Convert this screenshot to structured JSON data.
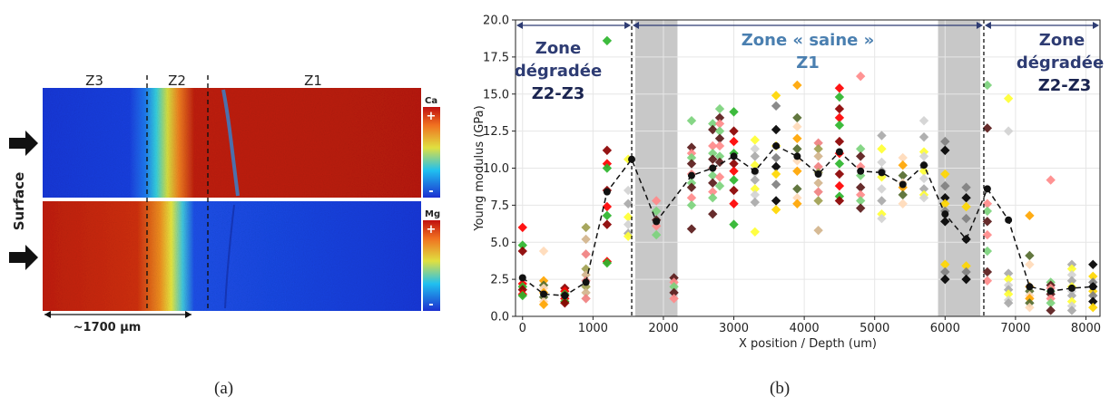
{
  "panel_a": {
    "zone_labels": [
      "Z3",
      "Z2",
      "Z1"
    ],
    "side_label": "Surface",
    "scale_label": "~1700 µm",
    "maps": [
      {
        "element": "Ca",
        "plus": "+",
        "minus": "-"
      },
      {
        "element": "Mg",
        "plus": "+",
        "minus": "-"
      }
    ],
    "caption": "(a)"
  },
  "panel_b": {
    "caption": "(b)",
    "zone_left": {
      "line1": "Zone",
      "line2": "dégradée",
      "line3": "Z2-Z3"
    },
    "zone_mid": {
      "line1": "Zone « saine »",
      "line2": "Z1"
    },
    "zone_right": {
      "line1": "Zone",
      "line2": "dégradée",
      "line3": "Z2-Z3"
    },
    "colors": {
      "zone_text": "#2e3c73",
      "zone_mid_text": "#4a7fb0",
      "arrow": "#2e3c73",
      "shade": "#c8c8c8",
      "mean": "#111111",
      "point_palette": [
        "#ff0000",
        "#ff8a8a",
        "#f08080",
        "#ffa500",
        "#ffd700",
        "#ffff33",
        "#2db52d",
        "#7cd37c",
        "#a0a050",
        "#556b2f",
        "#808080",
        "#d3d3d3",
        "#8b0000",
        "#5a1a1a",
        "#d2b48c",
        "#ffdab9",
        "#000000",
        "#a9a9a9"
      ]
    }
  },
  "chart_data": {
    "type": "scatter",
    "xlabel": "X position / Depth (um)",
    "ylabel": "Young modulus (GPa)",
    "xlim": [
      -100,
      8200
    ],
    "ylim": [
      0,
      20
    ],
    "xticks": [
      0,
      1000,
      2000,
      3000,
      4000,
      5000,
      6000,
      7000,
      8000
    ],
    "yticks": [
      0.0,
      2.5,
      5.0,
      7.5,
      10.0,
      12.5,
      15.0,
      17.5,
      20.0
    ],
    "shaded_bands": [
      [
        1600,
        2200
      ],
      [
        5900,
        6500
      ]
    ],
    "boundaries": [
      1550,
      6550
    ],
    "grid": true,
    "legend": "none",
    "mean": {
      "x": [
        0,
        300,
        600,
        900,
        1200,
        1550,
        1900,
        2400,
        2700,
        3000,
        3300,
        3600,
        3900,
        4200,
        4500,
        4800,
        5100,
        5400,
        5700,
        6000,
        6300,
        6600,
        6900,
        7200,
        7500,
        7800,
        8100
      ],
      "y": [
        2.6,
        1.5,
        1.4,
        2.3,
        8.4,
        10.6,
        6.4,
        9.5,
        10.0,
        10.8,
        9.8,
        11.5,
        10.8,
        9.6,
        11.1,
        9.8,
        9.7,
        8.9,
        10.2,
        6.9,
        5.2,
        8.6,
        6.5,
        2.0,
        1.7,
        1.9,
        2.0
      ]
    },
    "points": [
      {
        "x": 0,
        "ys": [
          6.0,
          4.8,
          4.4,
          2.2,
          2.0,
          1.8,
          1.5,
          1.4
        ]
      },
      {
        "x": 300,
        "ys": [
          4.4,
          2.4,
          2.1,
          1.9,
          1.6,
          1.3,
          1.0,
          0.8
        ]
      },
      {
        "x": 600,
        "ys": [
          1.9,
          1.7,
          1.5,
          1.4,
          1.2,
          1.0,
          0.9
        ]
      },
      {
        "x": 900,
        "ys": [
          6.0,
          5.2,
          4.2,
          3.2,
          2.8,
          2.4,
          2.0,
          1.6,
          1.2
        ]
      },
      {
        "x": 1200,
        "ys": [
          18.6,
          11.2,
          10.3,
          10.0,
          8.5,
          7.4,
          6.8,
          6.2,
          3.7,
          3.6
        ]
      },
      {
        "x": 1500,
        "ys": [
          10.6,
          8.5,
          7.6,
          6.7,
          6.2,
          5.6,
          5.4
        ]
      },
      {
        "x": 1900,
        "ys": [
          7.8,
          7.1,
          6.5,
          6.1,
          5.5
        ]
      },
      {
        "x": 2150,
        "ys": [
          2.6,
          2.3,
          2.0,
          1.6,
          1.2
        ]
      },
      {
        "x": 2400,
        "ys": [
          13.2,
          11.4,
          11.0,
          10.7,
          10.3,
          9.6,
          9.0,
          8.7,
          8.0,
          7.5,
          5.9
        ]
      },
      {
        "x": 2700,
        "ys": [
          13.0,
          12.6,
          11.5,
          11.0,
          10.6,
          10.0,
          9.5,
          9.0,
          8.4,
          8.0,
          6.9
        ]
      },
      {
        "x": 2800,
        "ys": [
          14.0,
          13.4,
          13.0,
          12.5,
          12.0,
          11.5,
          10.8,
          10.4,
          9.4,
          8.8
        ]
      },
      {
        "x": 3000,
        "ys": [
          13.8,
          12.5,
          11.8,
          11.0,
          10.3,
          9.8,
          9.2,
          8.5,
          7.6,
          6.2
        ]
      },
      {
        "x": 3300,
        "ys": [
          11.9,
          11.3,
          10.8,
          10.2,
          9.7,
          9.2,
          8.6,
          8.2,
          7.7,
          5.7
        ]
      },
      {
        "x": 3600,
        "ys": [
          14.9,
          14.2,
          12.6,
          11.5,
          10.7,
          10.1,
          9.6,
          8.9,
          7.8,
          7.2
        ]
      },
      {
        "x": 3900,
        "ys": [
          15.6,
          13.4,
          12.8,
          12.0,
          11.3,
          10.5,
          9.8,
          8.6,
          8.0,
          7.6
        ]
      },
      {
        "x": 4200,
        "ys": [
          11.7,
          11.3,
          10.8,
          10.1,
          9.7,
          9.0,
          8.4,
          7.8,
          5.8
        ]
      },
      {
        "x": 4500,
        "ys": [
          15.4,
          14.8,
          14.0,
          13.4,
          12.9,
          11.8,
          11.0,
          10.3,
          9.6,
          8.8,
          8.1,
          7.8
        ]
      },
      {
        "x": 4800,
        "ys": [
          16.2,
          11.3,
          10.8,
          10.1,
          9.5,
          8.7,
          8.2,
          7.8,
          7.3
        ]
      },
      {
        "x": 5100,
        "ys": [
          12.2,
          11.3,
          10.4,
          9.8,
          9.4,
          8.6,
          7.8,
          6.9,
          6.6
        ]
      },
      {
        "x": 5400,
        "ys": [
          10.7,
          10.2,
          9.5,
          9.0,
          8.7,
          8.2,
          7.6
        ]
      },
      {
        "x": 5700,
        "ys": [
          13.2,
          12.1,
          11.1,
          10.8,
          10.2,
          9.8,
          9.3,
          8.6,
          8.2,
          8.0
        ]
      },
      {
        "x": 6000,
        "ys": [
          11.8,
          11.2,
          9.6,
          8.8,
          8.0,
          7.6,
          7.1,
          6.4,
          3.5,
          3.0,
          2.5
        ]
      },
      {
        "x": 6300,
        "ys": [
          8.7,
          8.0,
          7.4,
          6.6,
          5.2,
          3.4,
          3.0,
          2.5
        ]
      },
      {
        "x": 6600,
        "ys": [
          15.6,
          12.7,
          7.6,
          7.1,
          6.4,
          5.5,
          4.4,
          3.0,
          2.4
        ]
      },
      {
        "x": 6900,
        "ys": [
          14.7,
          12.5,
          2.9,
          2.5,
          2.1,
          1.8,
          1.5,
          1.1,
          0.9
        ]
      },
      {
        "x": 7200,
        "ys": [
          6.8,
          4.1,
          3.5,
          2.0,
          1.7,
          1.4,
          1.2,
          0.9,
          0.6
        ]
      },
      {
        "x": 7500,
        "ys": [
          9.2,
          2.3,
          2.1,
          1.9,
          1.7,
          1.5,
          1.2,
          0.9,
          0.4
        ]
      },
      {
        "x": 7800,
        "ys": [
          3.5,
          3.2,
          2.8,
          2.4,
          2.0,
          1.7,
          1.4,
          1.0,
          0.7,
          0.4
        ]
      },
      {
        "x": 8100,
        "ys": [
          3.5,
          2.7,
          2.3,
          2.0,
          1.7,
          1.4,
          1.0,
          0.6
        ]
      }
    ]
  }
}
